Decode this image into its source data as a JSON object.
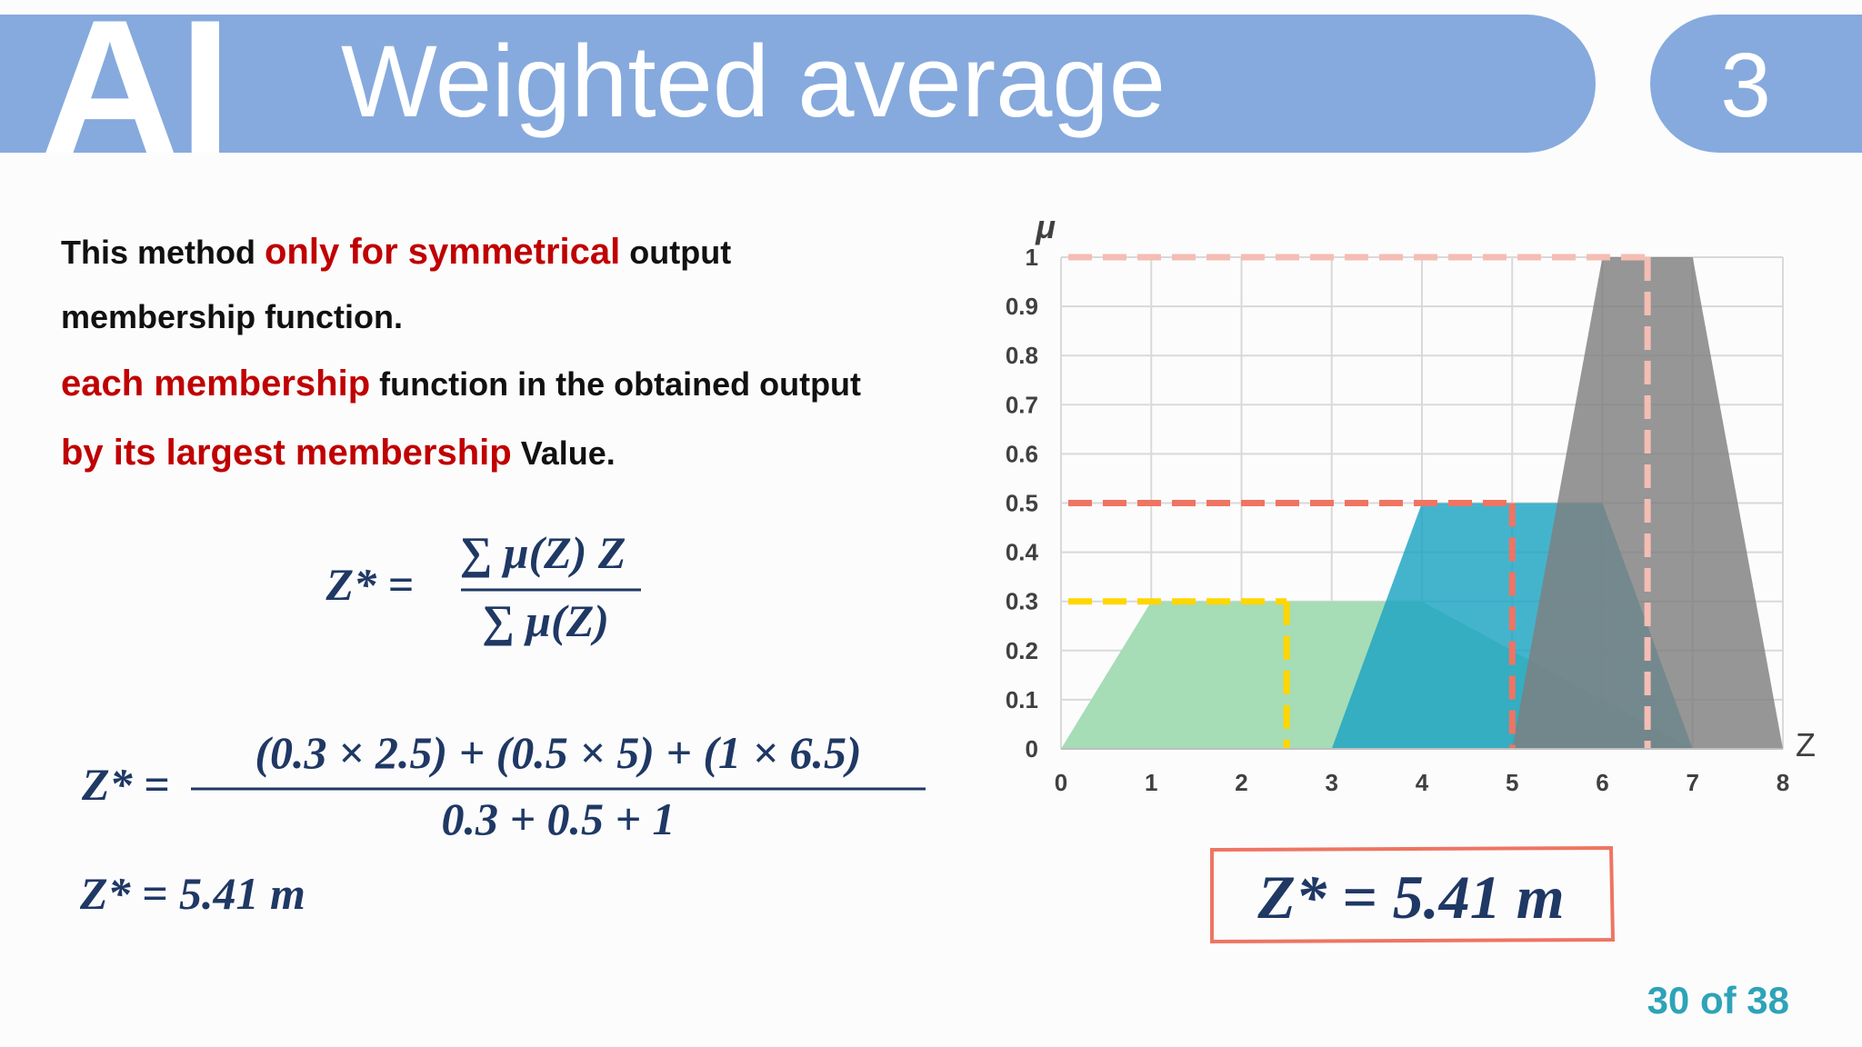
{
  "header": {
    "logo": "AI",
    "title": "Weighted average",
    "number": "3"
  },
  "text": {
    "lines": [
      [
        {
          "text": "This method ",
          "highlight": false
        },
        {
          "text": "only for symmetrical",
          "highlight": true
        },
        {
          "text": " output",
          "highlight": false
        }
      ],
      [
        {
          "text": "membership function.",
          "highlight": false
        }
      ],
      [
        {
          "text": "each membership",
          "highlight": true
        },
        {
          "text": " function in the obtained output",
          "highlight": false
        }
      ],
      [
        {
          "text": "by its largest membership",
          "highlight": true
        },
        {
          "text": " Value.",
          "highlight": false
        }
      ]
    ]
  },
  "formula_general": {
    "lhs": "Z* =",
    "numerator": "∑ μ(Z) Z",
    "denominator": "∑ μ(Z)"
  },
  "formula_applied": {
    "lhs": "Z* =",
    "numerator": "(0.3 × 2.5) + (0.5 × 5) + (1 × 6.5)",
    "denominator": "0.3 + 0.5 + 1"
  },
  "result": "Z* = 5.41 m",
  "boxed_result": "Z* = 5.41 m",
  "page_number": "30 of 38",
  "chart_data": {
    "type": "area",
    "x_label": "Z",
    "y_label": "μ",
    "xlim": [
      0,
      8
    ],
    "ylim": [
      0,
      1
    ],
    "xticks": [
      0,
      1,
      2,
      3,
      4,
      5,
      6,
      7,
      8
    ],
    "yticks": [
      0,
      0.1,
      0.2,
      0.3,
      0.4,
      0.5,
      0.6,
      0.7,
      0.8,
      0.9,
      1
    ],
    "grid": true,
    "series": [
      {
        "color": "#a6dcb6",
        "x": [
          0,
          1,
          4,
          7
        ],
        "values": [
          0,
          0.3,
          0.3,
          0
        ]
      },
      {
        "color": "#1ba3c2",
        "x": [
          3,
          4,
          6,
          7
        ],
        "values": [
          0,
          0.5,
          0.5,
          0
        ]
      },
      {
        "color": "#7f7f7f",
        "x": [
          5,
          6,
          7,
          8
        ],
        "values": [
          0,
          1,
          1,
          0
        ]
      }
    ],
    "guides": [
      {
        "x": 2.5,
        "y": 0.3,
        "color": "#ffd700"
      },
      {
        "x": 5,
        "y": 0.5,
        "color": "#f07462"
      },
      {
        "x": 6.5,
        "y": 1,
        "color": "#f5bdb4"
      }
    ]
  }
}
